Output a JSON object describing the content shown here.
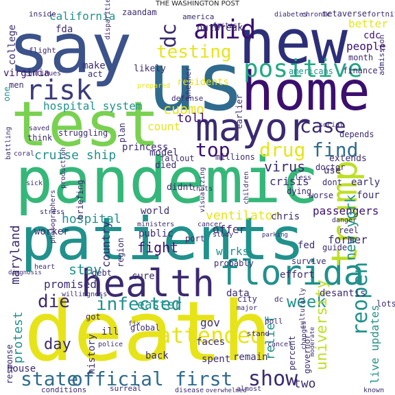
{
  "title": "THE WASHINGTON POST",
  "words": [
    {
      "text": "say",
      "color": "#3b528b"
    },
    {
      "text": "new",
      "color": "#2c2f78"
    },
    {
      "text": "us",
      "color": "#2f6b8e"
    },
    {
      "text": "home",
      "color": "#3b0f6f"
    },
    {
      "text": "test",
      "color": "#7ad151"
    },
    {
      "text": "mayor",
      "color": "#3b2a6f"
    },
    {
      "text": "risk",
      "color": "#3b3b7a"
    },
    {
      "text": "pandemic",
      "color": "#35b779"
    },
    {
      "text": "patients",
      "color": "#21918c"
    },
    {
      "text": "health",
      "color": "#3b2a6f"
    },
    {
      "text": "florida",
      "color": "#21918c"
    },
    {
      "text": "death",
      "color": "#e6e419"
    },
    {
      "text": "trump",
      "color": "#bddf26"
    },
    {
      "text": "positive",
      "color": "#22a884"
    },
    {
      "text": "testing",
      "color": "#e6e419"
    },
    {
      "text": "amid",
      "color": "#3b0f6f"
    },
    {
      "text": "dc",
      "color": "#3b2a6f"
    },
    {
      "text": "california",
      "color": "#21918c"
    },
    {
      "text": "drug",
      "color": "#e6e419"
    },
    {
      "text": "find",
      "color": "#2f6b8e"
    },
    {
      "text": "top",
      "color": "#3b0f6f"
    },
    {
      "text": "case",
      "color": "#3b2a6f"
    },
    {
      "text": "cruise ship",
      "color": "#21918c"
    },
    {
      "text": "die",
      "color": "#3b2a6f"
    },
    {
      "text": "infected",
      "color": "#21918c"
    },
    {
      "text": "week",
      "color": "#21918c"
    },
    {
      "text": "reopen",
      "color": "#21918c"
    },
    {
      "text": "state",
      "color": "#2f6b8e"
    },
    {
      "text": "official",
      "color": "#2f6b8e"
    },
    {
      "text": "first",
      "color": "#2f6b8e"
    },
    {
      "text": "show",
      "color": "#3b2a6f"
    },
    {
      "text": "hospital system",
      "color": "#21918c"
    },
    {
      "text": "cuomo",
      "color": "#e6e419"
    },
    {
      "text": "count",
      "color": "#e6e419"
    },
    {
      "text": "toll",
      "color": "#3b0f6f"
    },
    {
      "text": "virus",
      "color": "#3b2a6f"
    },
    {
      "text": "crisis",
      "color": "#3b2a6f"
    },
    {
      "text": "ventilator",
      "color": "#e6e419"
    },
    {
      "text": "passengers",
      "color": "#3b0f6f"
    },
    {
      "text": "new york",
      "color": "#21918c"
    },
    {
      "text": "fight",
      "color": "#3b0f6f"
    },
    {
      "text": "hospital",
      "color": "#21918c"
    },
    {
      "text": "maryland",
      "color": "#3b2a6f"
    },
    {
      "text": "stay",
      "color": "#21918c"
    },
    {
      "text": "easter",
      "color": "#21918c"
    },
    {
      "text": "protest",
      "color": "#21918c"
    },
    {
      "text": "attended",
      "color": "#e6e419"
    },
    {
      "text": "university",
      "color": "#bddf26"
    },
    {
      "text": "live updates",
      "color": "#21918c"
    },
    {
      "text": "day",
      "color": "#3b2a6f"
    },
    {
      "text": "two",
      "color": "#3b2a6f"
    },
    {
      "text": "gov",
      "color": "#3b2a6f"
    },
    {
      "text": "relief",
      "color": "#21918c"
    },
    {
      "text": "people",
      "color": "#3b0f6f"
    },
    {
      "text": "cdc",
      "color": "#3b0f6f"
    },
    {
      "text": "better",
      "color": "#e6e419"
    },
    {
      "text": "college",
      "color": "#3b2a6f"
    },
    {
      "text": "virginia",
      "color": "#3b0f6f"
    },
    {
      "text": "fda",
      "color": "#3b2a6f"
    },
    {
      "text": "zaandam",
      "color": "#3b2a6f"
    },
    {
      "text": "america",
      "color": "#3b2a6f"
    },
    {
      "text": "outbreak",
      "color": "#3b2a6f"
    },
    {
      "text": "finance",
      "color": "#3b2a6f"
    },
    {
      "text": "americans",
      "color": "#21918c"
    },
    {
      "text": "month",
      "color": "#3b2a6f"
    },
    {
      "text": "residents",
      "color": "#e6e419"
    },
    {
      "text": "men",
      "color": "#3b2a6f"
    },
    {
      "text": "make",
      "color": "#3b2a6f"
    },
    {
      "text": "act",
      "color": "#3b2a6f"
    },
    {
      "text": "likely",
      "color": "#3b2a6f"
    },
    {
      "text": "one",
      "color": "#21918c"
    },
    {
      "text": "princess",
      "color": "#3b2a6f"
    },
    {
      "text": "model",
      "color": "#3b2a6f"
    },
    {
      "text": "died",
      "color": "#3b2a6f"
    },
    {
      "text": "millions",
      "color": "#3b2a6f"
    },
    {
      "text": "doctor",
      "color": "#3b2a6f"
    },
    {
      "text": "extends",
      "color": "#3b2a6f"
    },
    {
      "text": "use",
      "color": "#3b2a6f"
    },
    {
      "text": "dont",
      "color": "#3b2a6f"
    },
    {
      "text": "early",
      "color": "#3b2a6f"
    },
    {
      "text": "four",
      "color": "#3b2a6f"
    },
    {
      "text": "offer",
      "color": "#3b2a6f"
    },
    {
      "text": "former",
      "color": "#3b2a6f"
    },
    {
      "text": "country",
      "color": "#3b2a6f"
    },
    {
      "text": "public",
      "color": "#3b2a6f"
    },
    {
      "text": "region",
      "color": "#3b2a6f"
    },
    {
      "text": "worker",
      "color": "#3b2a6f"
    },
    {
      "text": "fed",
      "color": "#3b2a6f"
    },
    {
      "text": "promised",
      "color": "#3b2a6f"
    },
    {
      "text": "debt",
      "color": "#3b2a6f"
    },
    {
      "text": "cure",
      "color": "#3b2a6f"
    },
    {
      "text": "works",
      "color": "#21918c"
    },
    {
      "text": "effort",
      "color": "#3b2a6f"
    },
    {
      "text": "desantis",
      "color": "#3b2a6f"
    },
    {
      "text": "data",
      "color": "#3b2a6f"
    },
    {
      "text": "city",
      "color": "#3b2a6f"
    },
    {
      "text": "lots",
      "color": "#3b2a6f"
    },
    {
      "text": "got",
      "color": "#3b2a6f"
    },
    {
      "text": "faces",
      "color": "#3b2a6f"
    },
    {
      "text": "back",
      "color": "#3b2a6f"
    },
    {
      "text": "spent",
      "color": "#3b2a6f"
    },
    {
      "text": "remain",
      "color": "#3b2a6f"
    },
    {
      "text": "history",
      "color": "#3b2a6f"
    },
    {
      "text": "house",
      "color": "#3b2a6f"
    },
    {
      "text": "percent",
      "color": "#3b2a6f"
    },
    {
      "text": "governor",
      "color": "#3b2a6f"
    },
    {
      "text": "depends",
      "color": "#3b2a6f"
    },
    {
      "text": "metaverse",
      "color": "#3b2a6f"
    },
    {
      "text": "fortnite",
      "color": "#3b2a6f"
    },
    {
      "text": "admission",
      "color": "#3b2a6f"
    },
    {
      "text": "diabetes",
      "color": "#3b2a6f"
    },
    {
      "text": "chronic",
      "color": "#3b2a6f"
    },
    {
      "text": "flight",
      "color": "#3b2a6f"
    },
    {
      "text": "inside",
      "color": "#3b2a6f"
    },
    {
      "text": "fastest",
      "color": "#3b2a6f"
    },
    {
      "text": "continues",
      "color": "#3b2a6f"
    },
    {
      "text": "disparities",
      "color": "#3b2a6f"
    },
    {
      "text": "prepared",
      "color": "#e6e419"
    },
    {
      "text": "defense",
      "color": "#3b2a6f"
    },
    {
      "text": "whether",
      "color": "#3b2a6f"
    },
    {
      "text": "earlier",
      "color": "#3b2a6f"
    },
    {
      "text": "social",
      "color": "#3b2a6f"
    },
    {
      "text": "saved",
      "color": "#3b2a6f"
    },
    {
      "text": "struggling",
      "color": "#3b2a6f"
    },
    {
      "text": "think",
      "color": "#3b2a6f"
    },
    {
      "text": "plan",
      "color": "#3b2a6f"
    },
    {
      "text": "coral",
      "color": "#3b2a6f"
    },
    {
      "text": "battling",
      "color": "#3b2a6f"
    },
    {
      "text": "sick",
      "color": "#3b2a6f"
    },
    {
      "text": "production",
      "color": "#3b2a6f"
    },
    {
      "text": "fallout",
      "color": "#3b2a6f"
    },
    {
      "text": "didnt",
      "color": "#3b2a6f"
    },
    {
      "text": "briefing",
      "color": "#3b2a6f"
    },
    {
      "text": "thats",
      "color": "#3b2a6f"
    },
    {
      "text": "visualizing",
      "color": "#3b2a6f"
    },
    {
      "text": "children",
      "color": "#3b2a6f"
    },
    {
      "text": "dying",
      "color": "#3b2a6f"
    },
    {
      "text": "less",
      "color": "#3b2a6f"
    },
    {
      "text": "worse",
      "color": "#3b2a6f"
    },
    {
      "text": "stress",
      "color": "#3b2a6f"
    },
    {
      "text": "world",
      "color": "#3b2a6f"
    },
    {
      "text": "ministers",
      "color": "#3b2a6f"
    },
    {
      "text": "cancer",
      "color": "#3b2a6f"
    },
    {
      "text": "study",
      "color": "#3b2a6f"
    },
    {
      "text": "chris",
      "color": "#3b2a6f"
    },
    {
      "text": "reel",
      "color": "#3b2a6f"
    },
    {
      "text": "danger",
      "color": "#3b2a6f"
    },
    {
      "text": "photographers",
      "color": "#3b2a6f"
    },
    {
      "text": "port",
      "color": "#3b2a6f"
    },
    {
      "text": "parking",
      "color": "#3b2a6f"
    },
    {
      "text": "probably",
      "color": "#3b2a6f"
    },
    {
      "text": "survive",
      "color": "#3b2a6f"
    },
    {
      "text": "guide",
      "color": "#3b2a6f"
    },
    {
      "text": "heart",
      "color": "#3b2a6f"
    },
    {
      "text": "diagnosis",
      "color": "#3b2a6f"
    },
    {
      "text": "willingness",
      "color": "#3b2a6f"
    },
    {
      "text": "fix",
      "color": "#3b2a6f"
    },
    {
      "text": "global",
      "color": "#3b2a6f"
    },
    {
      "text": "major",
      "color": "#3b2a6f"
    },
    {
      "text": "ill",
      "color": "#3b2a6f"
    },
    {
      "text": "changes",
      "color": "#3b2a6f"
    },
    {
      "text": "response",
      "color": "#3b2a6f"
    },
    {
      "text": "police",
      "color": "#3b2a6f"
    },
    {
      "text": "conditions",
      "color": "#3b2a6f"
    },
    {
      "text": "surreal",
      "color": "#3b2a6f"
    },
    {
      "text": "disease",
      "color": "#3b2a6f"
    },
    {
      "text": "almost",
      "color": "#3b2a6f"
    },
    {
      "text": "overwhelmed",
      "color": "#3b2a6f"
    },
    {
      "text": "known",
      "color": "#3b2a6f"
    },
    {
      "text": "culturally",
      "color": "#3b2a6f"
    },
    {
      "text": "moderate",
      "color": "#3b2a6f"
    },
    {
      "text": "dc",
      "color": "#3b2a6f"
    },
    {
      "text": "poll",
      "color": "#3b2a6f"
    },
    {
      "text": "stand",
      "color": "#3b2a6f"
    },
    {
      "text": "cancel",
      "color": "#3b2a6f"
    }
  ]
}
